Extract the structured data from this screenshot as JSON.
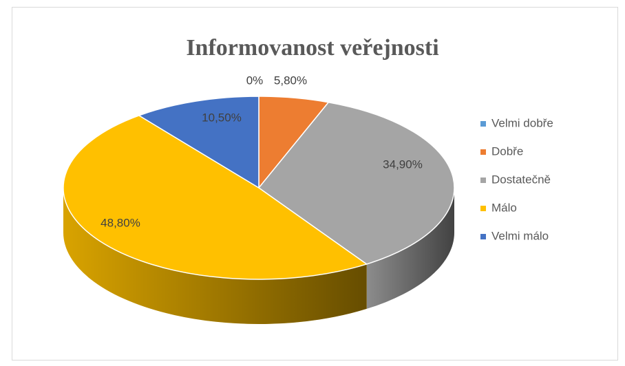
{
  "chart_data": {
    "type": "pie3d",
    "title": "Informovanost veřejnosti",
    "categories": [
      "Velmi dobře",
      "Dobře",
      "Dostatečně",
      "Málo",
      "Velmi málo"
    ],
    "values": [
      0,
      5.8,
      34.9,
      48.8,
      10.5
    ],
    "value_labels": [
      "0%",
      "5,80%",
      "34,90%",
      "48,80%",
      "10,50%"
    ],
    "colors": [
      "#5b9bd5",
      "#ed7d31",
      "#a5a5a5",
      "#ffc000",
      "#4472c4"
    ],
    "legend": "right"
  }
}
